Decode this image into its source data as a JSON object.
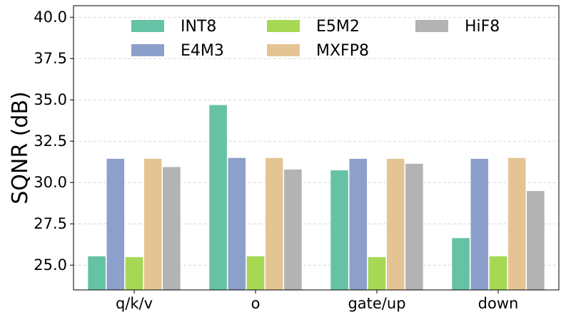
{
  "chart_data": {
    "type": "bar",
    "ylabel": "SQNR (dB)",
    "xlabel": "",
    "categories": [
      "q/k/v",
      "o",
      "gate/up",
      "down"
    ],
    "ylim": [
      23.5,
      40.7
    ],
    "yticks": [
      25.0,
      27.5,
      30.0,
      32.5,
      35.0,
      37.5,
      40.0
    ],
    "ytick_labels": [
      "25.0",
      "27.5",
      "30.0",
      "32.5",
      "35.0",
      "37.5",
      "40.0"
    ],
    "grid": "y-dashed",
    "legend_placement": "top",
    "series": [
      {
        "name": "INT8",
        "color": "#66c2a5",
        "values": [
          25.55,
          34.7,
          30.75,
          26.65
        ]
      },
      {
        "name": "E4M3",
        "color": "#8da0cb",
        "values": [
          31.45,
          31.5,
          31.45,
          31.45
        ]
      },
      {
        "name": "E5M2",
        "color": "#a6d854",
        "values": [
          25.5,
          25.55,
          25.5,
          25.55
        ]
      },
      {
        "name": "MXFP8",
        "color": "#e5c494",
        "values": [
          31.45,
          31.5,
          31.45,
          31.5
        ]
      },
      {
        "name": "HiF8",
        "color": "#b3b3b3",
        "values": [
          30.95,
          30.8,
          31.15,
          29.5
        ]
      }
    ]
  }
}
